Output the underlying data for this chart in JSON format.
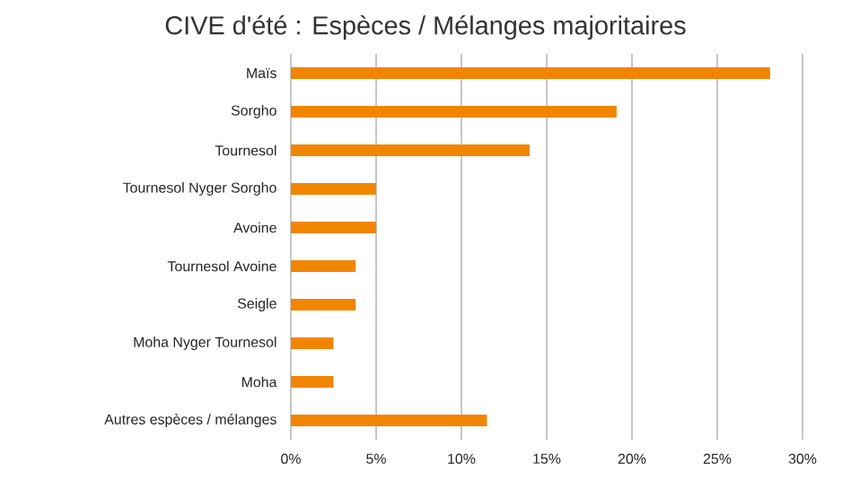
{
  "chart_data": {
    "type": "bar",
    "orientation": "horizontal",
    "title": "CIVE d'été : Espèces / Mélanges majoritaires",
    "categories": [
      "Maïs",
      "Sorgho",
      "Tournesol",
      "Tournesol Nyger Sorgho",
      "Avoine",
      "Tournesol Avoine",
      "Seigle",
      "Moha Nyger Tournesol",
      "Moha",
      "Autres espèces / mélanges"
    ],
    "values": [
      28.1,
      19.1,
      14.0,
      5.0,
      5.0,
      3.8,
      3.8,
      2.5,
      2.5,
      11.5
    ],
    "color": "#f28500",
    "xlim": [
      0,
      30
    ],
    "xticks": [
      {
        "value": 0,
        "label": "0%"
      },
      {
        "value": 5,
        "label": "5%"
      },
      {
        "value": 10,
        "label": "10%"
      },
      {
        "value": 15,
        "label": "15%"
      },
      {
        "value": 20,
        "label": "20%"
      },
      {
        "value": 25,
        "label": "25%"
      },
      {
        "value": 30,
        "label": "30%"
      }
    ],
    "grid": "x"
  }
}
